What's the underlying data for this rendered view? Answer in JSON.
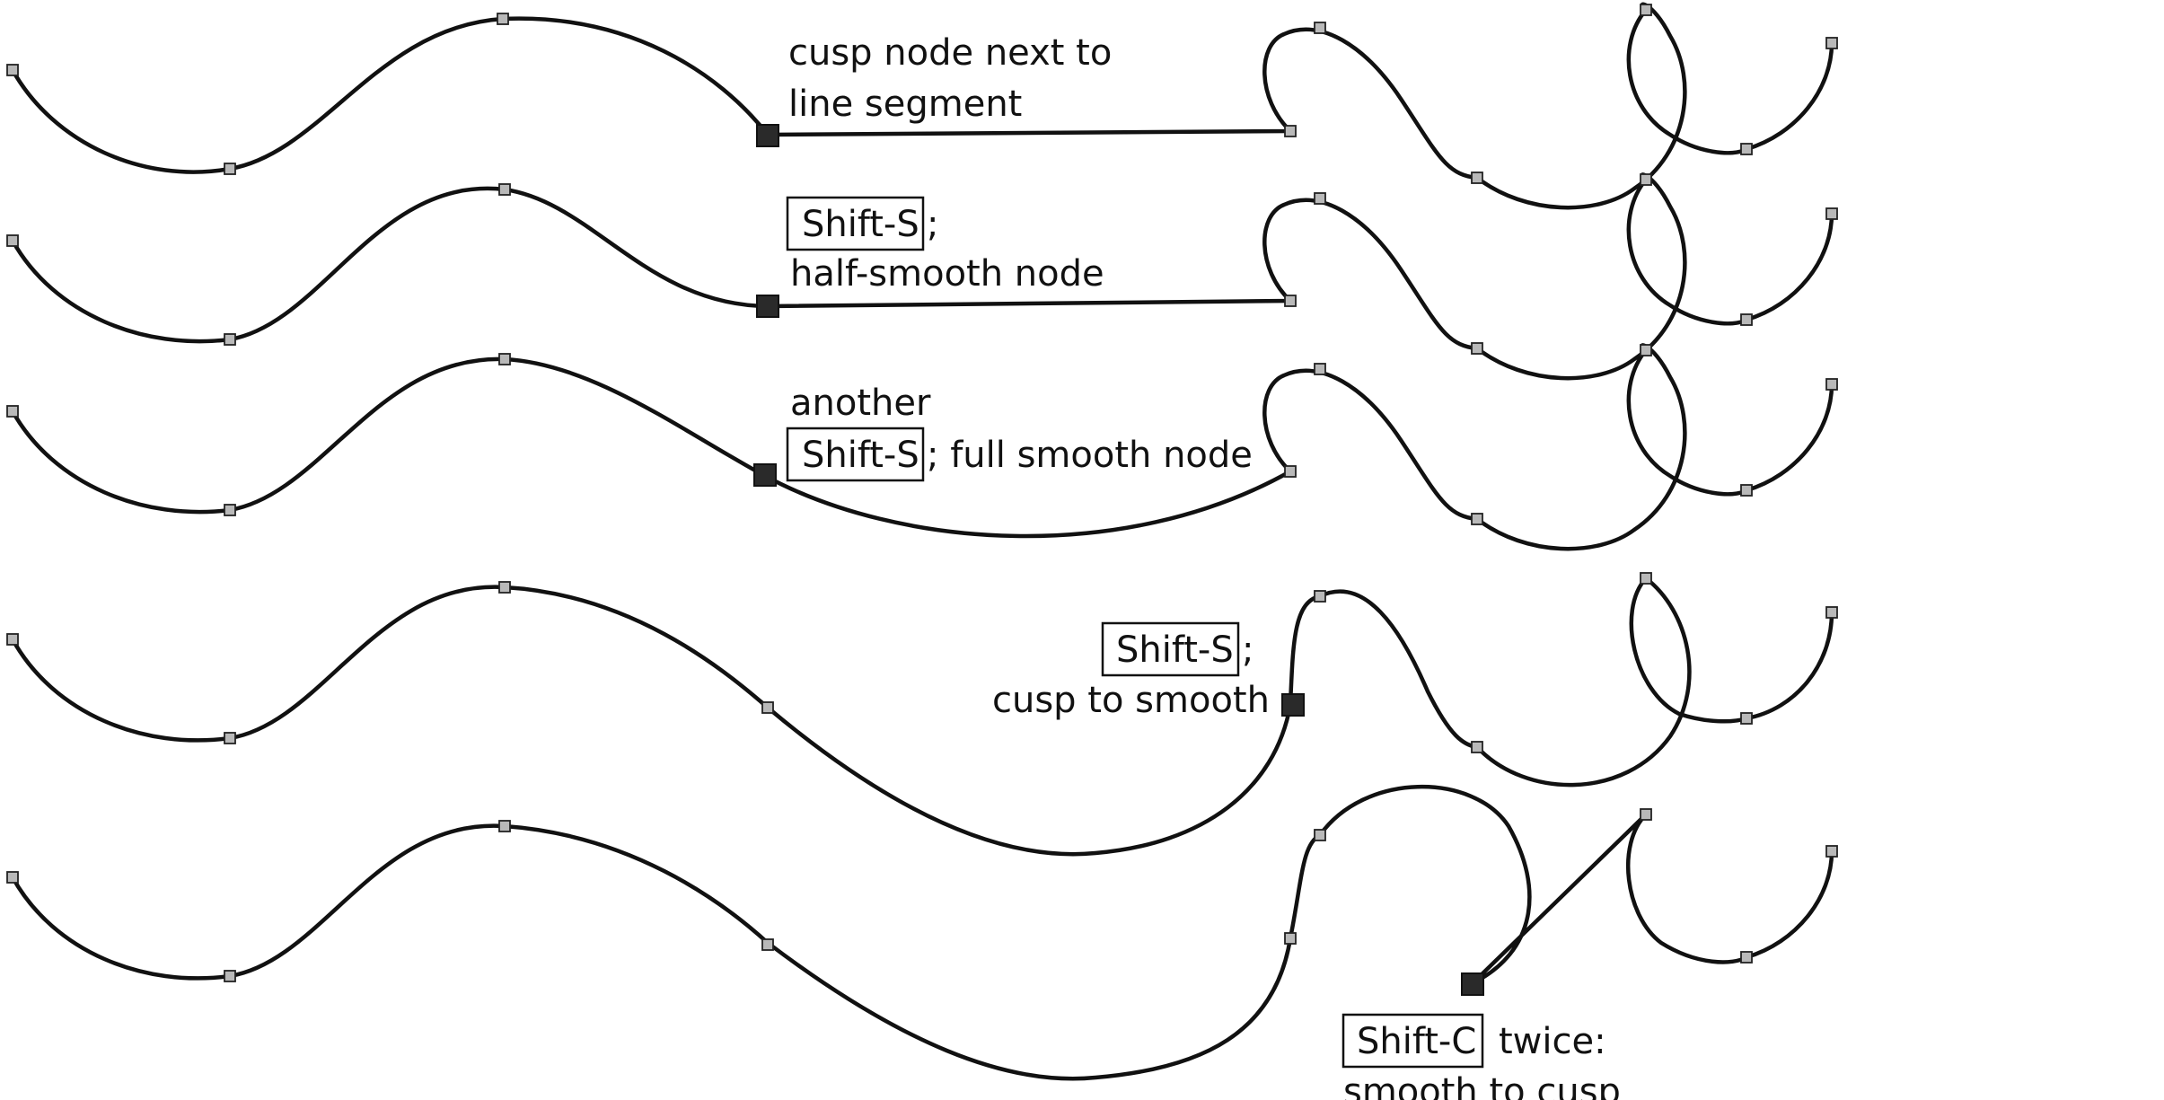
{
  "annotations": {
    "row1": {
      "line1": "cusp node next to",
      "line2": "line segment"
    },
    "row2": {
      "key": "Shift-S",
      "after_key": ";",
      "line2": "half-smooth node"
    },
    "row3": {
      "line1": "another",
      "key": "Shift-S",
      "after_key": "; full smooth node"
    },
    "row4": {
      "key": "Shift-S",
      "after_key": ";",
      "line2": "cusp to smooth"
    },
    "row5": {
      "key": "Shift-C",
      "after_key": "twice:",
      "line2": "smooth to cusp"
    }
  },
  "colors": {
    "stroke": "#111111",
    "node_fill": "#b9b9b9",
    "selected_node_fill": "#2a2a2a"
  }
}
